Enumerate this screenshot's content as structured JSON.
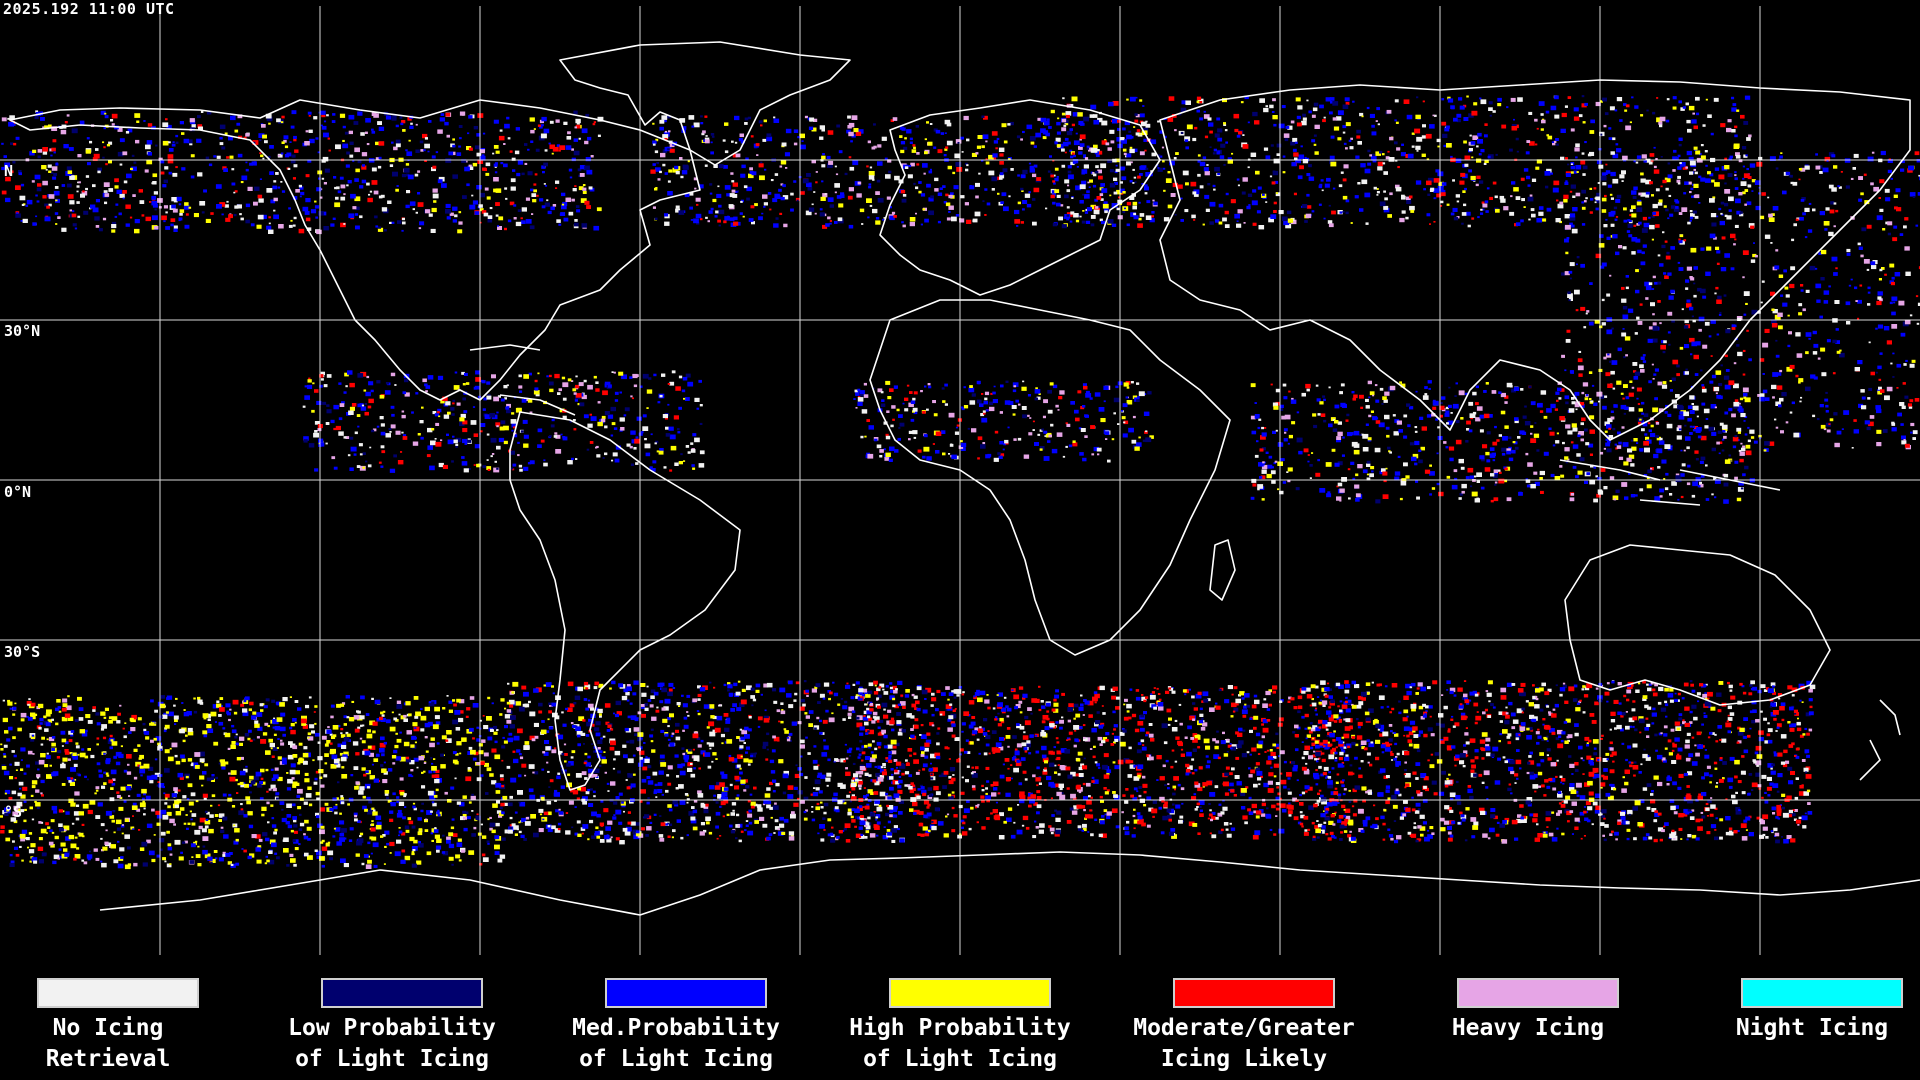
{
  "header": {
    "timestamp": "2025.192 11:00 UTC"
  },
  "lat_labels": [
    {
      "lat": 60,
      "label": "N"
    },
    {
      "lat": 30,
      "label": "30°N"
    },
    {
      "lat": 0,
      "label": "0°N"
    },
    {
      "lat": -30,
      "label": "30°S"
    },
    {
      "lat": -60,
      "label": "°S"
    }
  ],
  "legend": [
    {
      "line1": "No Icing",
      "line2": "Retrieval",
      "color": "#f2f2f2"
    },
    {
      "line1": "Low Probability",
      "line2": "of Light Icing",
      "color": "#00006e"
    },
    {
      "line1": "Med.Probability",
      "line2": "of Light Icing",
      "color": "#0000ff"
    },
    {
      "line1": "High Probability",
      "line2": "of Light Icing",
      "color": "#ffff00"
    },
    {
      "line1": "Moderate/Greater",
      "line2": "Icing Likely",
      "color": "#ff0000"
    },
    {
      "line1": "Heavy Icing",
      "line2": "",
      "color": "#e6a5e6"
    },
    {
      "line1": "Night Icing",
      "line2": "",
      "color": "#00ffff"
    }
  ]
}
